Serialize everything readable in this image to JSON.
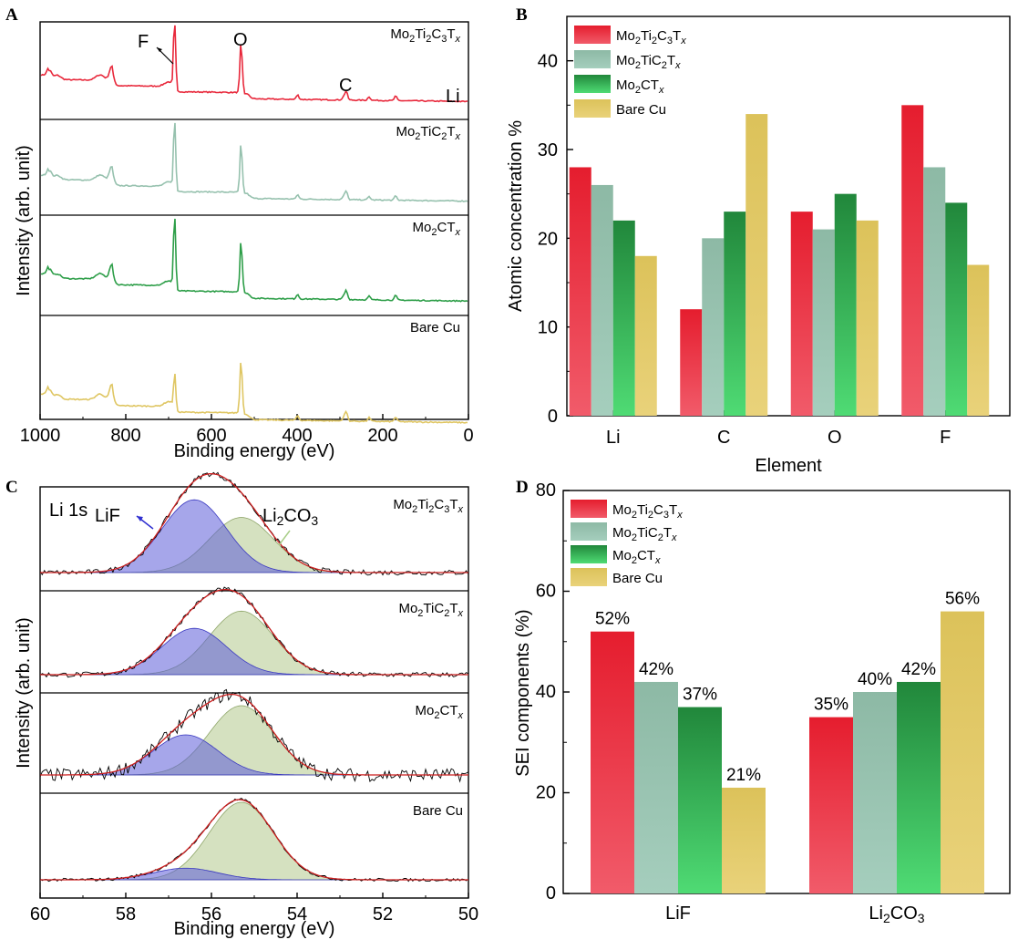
{
  "panels": {
    "a": "A",
    "b": "B",
    "c": "C",
    "d": "D"
  },
  "formulas": {
    "m3": [
      "Mo",
      "2",
      "Ti",
      "2",
      "C",
      "3",
      "T",
      "x"
    ],
    "m2": [
      "Mo",
      "2",
      "TiC",
      "2",
      "T",
      "x"
    ],
    "m1": [
      "Mo",
      "2",
      "CT",
      "x"
    ],
    "bare": [
      "Bare Cu"
    ],
    "li2co3": [
      "Li",
      "2",
      "CO",
      "3"
    ]
  },
  "colors": {
    "m3": "#e8283b",
    "m2": "#96c1ae",
    "m1": "#2d9e48",
    "bare": "#dfc663",
    "lif_fill": "#5d5cd8",
    "li2co3_fill": "#b3c98d",
    "fit": "#cc1f1f",
    "raw": "#000000"
  },
  "chart_data": [
    {
      "panel": "A",
      "type": "line",
      "xlabel": "Binding energy (eV)",
      "ylabel": "Intensity (arb. unit)",
      "xlim": [
        1000,
        0
      ],
      "xticks": [
        1000,
        800,
        600,
        400,
        200,
        0
      ],
      "annotations": [
        "F",
        "O",
        "C",
        "Li"
      ],
      "stacked_series": [
        {
          "name": "Mo2Ti2C3Tx",
          "peaks_eV": [
            978,
            833,
            686,
            531,
            399,
            285,
            232,
            170
          ]
        },
        {
          "name": "Mo2TiC2Tx",
          "peaks_eV": [
            978,
            833,
            686,
            531,
            399,
            285,
            232,
            170
          ]
        },
        {
          "name": "Mo2CTx",
          "peaks_eV": [
            978,
            833,
            686,
            531,
            399,
            285,
            232,
            170
          ]
        },
        {
          "name": "Bare Cu",
          "peaks_eV": [
            978,
            833,
            686,
            531,
            285
          ]
        }
      ]
    },
    {
      "panel": "B",
      "type": "bar",
      "xlabel": "Element",
      "ylabel": "Atomic concentration %",
      "ylim": [
        0,
        45
      ],
      "yticks": [
        0,
        10,
        20,
        30,
        40
      ],
      "categories": [
        "Li",
        "C",
        "O",
        "F"
      ],
      "legend_position": "top-left",
      "series": [
        {
          "name": "Mo2Ti2C3Tx",
          "values": [
            28,
            12,
            23,
            35
          ]
        },
        {
          "name": "Mo2TiC2Tx",
          "values": [
            26,
            20,
            21,
            28
          ]
        },
        {
          "name": "Mo2CTx",
          "values": [
            22,
            23,
            25,
            24
          ]
        },
        {
          "name": "Bare Cu",
          "values": [
            18,
            34,
            22,
            17
          ]
        }
      ]
    },
    {
      "panel": "C",
      "type": "line",
      "xlabel": "Binding energy (eV)",
      "ylabel": "Intensity (arb. unit)",
      "xlim": [
        60,
        50
      ],
      "xticks": [
        60,
        58,
        56,
        54,
        52,
        50
      ],
      "region": "Li 1s",
      "annotations": [
        "LiF",
        "Li2CO3"
      ],
      "stacked_series": [
        {
          "name": "Mo2Ti2C3Tx",
          "LiF": {
            "center": 56.4,
            "height": 0.95
          },
          "Li2CO3": {
            "center": 55.3,
            "height": 0.72
          }
        },
        {
          "name": "Mo2TiC2Tx",
          "LiF": {
            "center": 56.4,
            "height": 0.62
          },
          "Li2CO3": {
            "center": 55.3,
            "height": 0.85
          }
        },
        {
          "name": "Mo2CTx",
          "LiF": {
            "center": 56.6,
            "height": 0.55
          },
          "Li2CO3": {
            "center": 55.3,
            "height": 0.95
          }
        },
        {
          "name": "Bare Cu",
          "LiF": {
            "center": 56.6,
            "height": 0.15
          },
          "Li2CO3": {
            "center": 55.3,
            "height": 1.0
          }
        }
      ]
    },
    {
      "panel": "D",
      "type": "bar",
      "xlabel": "",
      "ylabel": "SEI components (%)",
      "ylim": [
        0,
        80
      ],
      "yticks": [
        0,
        20,
        40,
        60,
        80
      ],
      "categories": [
        "LiF",
        "Li2CO3"
      ],
      "legend_position": "top-left",
      "series": [
        {
          "name": "Mo2Ti2C3Tx",
          "values": [
            52,
            35
          ]
        },
        {
          "name": "Mo2TiC2Tx",
          "values": [
            42,
            40
          ]
        },
        {
          "name": "Mo2CTx",
          "values": [
            37,
            42
          ]
        },
        {
          "name": "Bare Cu",
          "values": [
            21,
            56
          ]
        }
      ],
      "value_labels": [
        [
          "52%",
          "42%",
          "37%",
          "21%"
        ],
        [
          "35%",
          "40%",
          "42%",
          "56%"
        ]
      ]
    }
  ]
}
